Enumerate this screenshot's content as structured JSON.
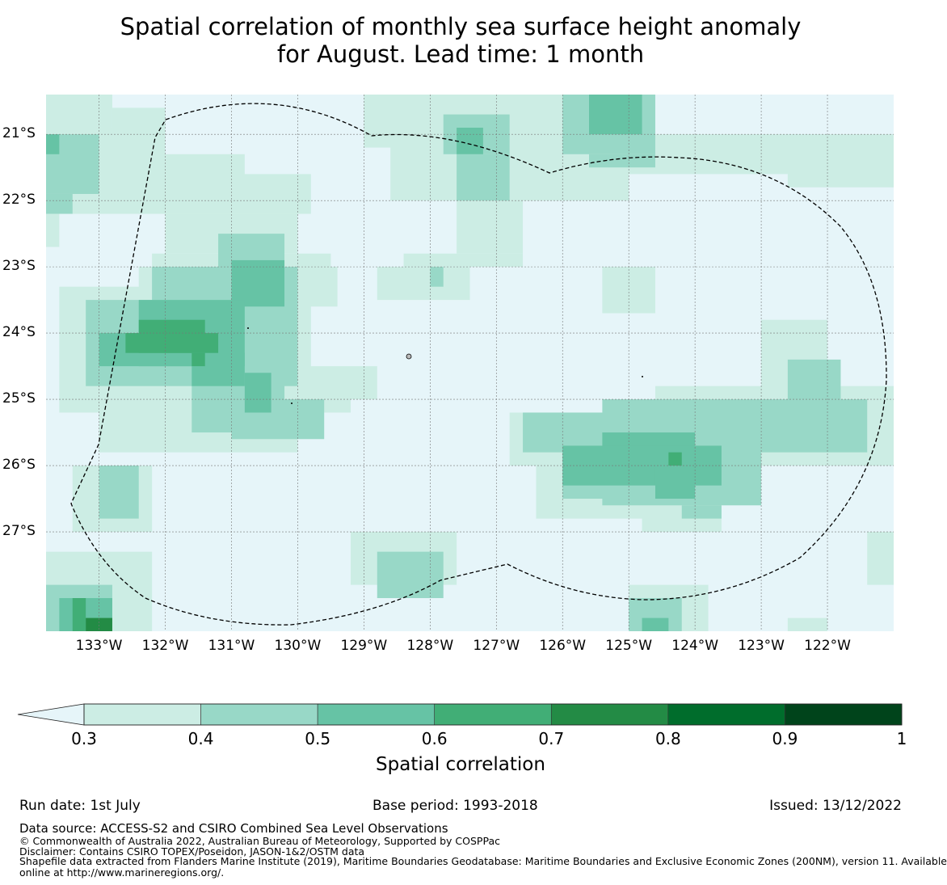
{
  "title_lines": [
    "Spatial correlation of monthly sea surface height anomaly",
    "for August. Lead time: 1 month"
  ],
  "chart_data": {
    "type": "heatmap",
    "title": "Spatial correlation of monthly sea surface height anomaly for August. Lead time: 1 month",
    "x_ticks": [
      "133°W",
      "132°W",
      "131°W",
      "130°W",
      "129°W",
      "128°W",
      "127°W",
      "126°W",
      "125°W",
      "124°W",
      "123°W",
      "122°W"
    ],
    "y_ticks": [
      "21°S",
      "22°S",
      "23°S",
      "24°S",
      "25°S",
      "26°S",
      "27°S"
    ],
    "lon_range": [
      -133.8,
      -121.0
    ],
    "lat_range": [
      -28.5,
      -20.4
    ],
    "grid": true,
    "cell_size_deg": 0.25,
    "levels": [
      0.3,
      0.4,
      0.5,
      0.6,
      0.7,
      0.8,
      0.9,
      1
    ],
    "level_colors": [
      "#ccede4",
      "#98d8c7",
      "#66c3a5",
      "#41ae76",
      "#238b45",
      "#006d2c",
      "#00441b"
    ],
    "below_min_color": "#e6f5f9",
    "colorbar_label": "Spatial correlation",
    "cells": [
      {
        "lon0": -133.8,
        "lat0": -20.4,
        "lon1": -132.8,
        "lat1": -20.9,
        "level": 0
      },
      {
        "lon0": -132.8,
        "lat0": -20.6,
        "lon1": -132.0,
        "lat1": -20.9,
        "level": 0
      },
      {
        "lon0": -133.8,
        "lat0": -20.9,
        "lon1": -132.0,
        "lat1": -22.2,
        "level": 0
      },
      {
        "lon0": -133.8,
        "lat0": -21.0,
        "lon1": -133.0,
        "lat1": -21.9,
        "level": 1
      },
      {
        "lon0": -133.8,
        "lat0": -21.9,
        "lon1": -133.4,
        "lat1": -22.2,
        "level": 1
      },
      {
        "lon0": -133.8,
        "lat0": -21.0,
        "lon1": -133.6,
        "lat1": -21.3,
        "level": 2
      },
      {
        "lon0": -133.8,
        "lat0": -22.2,
        "lon1": -133.6,
        "lat1": -22.7,
        "level": 0
      },
      {
        "lon0": -132.0,
        "lat0": -21.3,
        "lon1": -130.8,
        "lat1": -22.0,
        "level": 0
      },
      {
        "lon0": -132.0,
        "lat0": -21.6,
        "lon1": -129.8,
        "lat1": -22.2,
        "level": 0
      },
      {
        "lon0": -132.0,
        "lat0": -22.2,
        "lon1": -130.0,
        "lat1": -22.8,
        "level": 0
      },
      {
        "lon0": -132.2,
        "lat0": -22.8,
        "lon1": -129.5,
        "lat1": -23.3,
        "level": 0
      },
      {
        "lon0": -132.4,
        "lat0": -23.0,
        "lon1": -129.4,
        "lat1": -23.6,
        "level": 0
      },
      {
        "lon0": -133.6,
        "lat0": -23.3,
        "lon1": -129.8,
        "lat1": -25.2,
        "level": 0
      },
      {
        "lon0": -133.0,
        "lat0": -24.8,
        "lon1": -130.0,
        "lat1": -25.8,
        "level": 0
      },
      {
        "lon0": -130.0,
        "lat0": -24.5,
        "lon1": -128.8,
        "lat1": -25.0,
        "level": 0
      },
      {
        "lon0": -130.0,
        "lat0": -25.0,
        "lon1": -129.2,
        "lat1": -25.2,
        "level": 0
      },
      {
        "lon0": -131.2,
        "lat0": -22.5,
        "lon1": -130.2,
        "lat1": -23.5,
        "level": 1
      },
      {
        "lon0": -132.2,
        "lat0": -23.0,
        "lon1": -130.0,
        "lat1": -23.8,
        "level": 1
      },
      {
        "lon0": -133.2,
        "lat0": -23.5,
        "lon1": -130.0,
        "lat1": -24.8,
        "level": 1
      },
      {
        "lon0": -131.6,
        "lat0": -24.5,
        "lon1": -130.2,
        "lat1": -25.5,
        "level": 1
      },
      {
        "lon0": -131.0,
        "lat0": -25.0,
        "lon1": -129.6,
        "lat1": -25.6,
        "level": 1
      },
      {
        "lon0": -131.0,
        "lat0": -22.9,
        "lon1": -130.2,
        "lat1": -23.6,
        "level": 2
      },
      {
        "lon0": -132.4,
        "lat0": -23.5,
        "lon1": -130.8,
        "lat1": -24.5,
        "level": 2
      },
      {
        "lon0": -133.0,
        "lat0": -24.0,
        "lon1": -131.6,
        "lat1": -24.5,
        "level": 2
      },
      {
        "lon0": -131.6,
        "lat0": -24.3,
        "lon1": -130.8,
        "lat1": -24.8,
        "level": 2
      },
      {
        "lon0": -130.8,
        "lat0": -24.6,
        "lon1": -130.4,
        "lat1": -25.2,
        "level": 2
      },
      {
        "lon0": -132.4,
        "lat0": -23.8,
        "lon1": -131.4,
        "lat1": -24.3,
        "level": 3
      },
      {
        "lon0": -132.6,
        "lat0": -24.0,
        "lon1": -131.2,
        "lat1": -24.3,
        "level": 3
      },
      {
        "lon0": -131.6,
        "lat0": -24.3,
        "lon1": -131.4,
        "lat1": -24.5,
        "level": 3
      },
      {
        "lon0": -129.0,
        "lat0": -20.4,
        "lon1": -127.0,
        "lat1": -21.2,
        "level": 0
      },
      {
        "lon0": -128.6,
        "lat0": -20.7,
        "lon1": -126.4,
        "lat1": -22.0,
        "level": 0
      },
      {
        "lon0": -127.2,
        "lat0": -20.4,
        "lon1": -125.0,
        "lat1": -22.0,
        "level": 0
      },
      {
        "lon0": -126.0,
        "lat0": -21.0,
        "lon1": -122.0,
        "lat1": -21.6,
        "level": 0
      },
      {
        "lon0": -122.6,
        "lat0": -21.0,
        "lon1": -121.0,
        "lat1": -21.8,
        "level": 0
      },
      {
        "lon0": -127.6,
        "lat0": -22.0,
        "lon1": -126.6,
        "lat1": -22.8,
        "level": 0
      },
      {
        "lon0": -128.4,
        "lat0": -22.8,
        "lon1": -126.6,
        "lat1": -23.0,
        "level": 0
      },
      {
        "lon0": -128.8,
        "lat0": -23.0,
        "lon1": -127.4,
        "lat1": -23.5,
        "level": 0
      },
      {
        "lon0": -127.8,
        "lat0": -20.7,
        "lon1": -126.8,
        "lat1": -21.3,
        "level": 1
      },
      {
        "lon0": -127.6,
        "lat0": -21.3,
        "lon1": -126.8,
        "lat1": -22.0,
        "level": 1
      },
      {
        "lon0": -126.0,
        "lat0": -20.4,
        "lon1": -124.6,
        "lat1": -21.3,
        "level": 1
      },
      {
        "lon0": -125.6,
        "lat0": -21.3,
        "lon1": -124.6,
        "lat1": -21.5,
        "level": 1
      },
      {
        "lon0": -127.6,
        "lat0": -20.9,
        "lon1": -127.2,
        "lat1": -21.3,
        "level": 2
      },
      {
        "lon0": -125.6,
        "lat0": -20.4,
        "lon1": -124.8,
        "lat1": -21.0,
        "level": 2
      },
      {
        "lon0": -128.0,
        "lat0": -23.0,
        "lon1": -127.8,
        "lat1": -23.3,
        "level": 1
      },
      {
        "lon0": -125.4,
        "lat0": -23.0,
        "lon1": -124.6,
        "lat1": -23.7,
        "level": 0
      },
      {
        "lon0": -122.0,
        "lat0": -23.8,
        "lon1": -123.0,
        "lat1": -25.0,
        "level": 0
      },
      {
        "lon0": -124.6,
        "lat0": -24.8,
        "lon1": -121.0,
        "lat1": -26.0,
        "level": 0
      },
      {
        "lon0": -126.8,
        "lat0": -25.2,
        "lon1": -121.0,
        "lat1": -26.0,
        "level": 0
      },
      {
        "lon0": -126.4,
        "lat0": -26.0,
        "lon1": -124.0,
        "lat1": -26.8,
        "level": 0
      },
      {
        "lon0": -124.8,
        "lat0": -26.0,
        "lon1": -123.6,
        "lat1": -27.0,
        "level": 0
      },
      {
        "lon0": -126.6,
        "lat0": -25.2,
        "lon1": -124.0,
        "lat1": -25.8,
        "level": 1
      },
      {
        "lon0": -125.4,
        "lat0": -25.0,
        "lon1": -123.0,
        "lat1": -26.6,
        "level": 1
      },
      {
        "lon0": -126.0,
        "lat0": -25.8,
        "lon1": -124.8,
        "lat1": -26.5,
        "level": 1
      },
      {
        "lon0": -123.0,
        "lat0": -25.0,
        "lon1": -121.4,
        "lat1": -25.8,
        "level": 1
      },
      {
        "lon0": -122.6,
        "lat0": -24.4,
        "lon1": -121.8,
        "lat1": -25.0,
        "level": 1
      },
      {
        "lon0": -124.2,
        "lat0": -26.6,
        "lon1": -123.6,
        "lat1": -26.8,
        "level": 1
      },
      {
        "lon0": -125.4,
        "lat0": -25.5,
        "lon1": -124.0,
        "lat1": -26.0,
        "level": 2
      },
      {
        "lon0": -126.0,
        "lat0": -25.7,
        "lon1": -123.6,
        "lat1": -26.3,
        "level": 2
      },
      {
        "lon0": -124.6,
        "lat0": -26.0,
        "lon1": -124.0,
        "lat1": -26.5,
        "level": 2
      },
      {
        "lon0": -124.4,
        "lat0": -25.8,
        "lon1": -124.2,
        "lat1": -26.0,
        "level": 3
      },
      {
        "lon0": -133.4,
        "lat0": -26.0,
        "lon1": -132.2,
        "lat1": -27.0,
        "level": 0
      },
      {
        "lon0": -133.0,
        "lat0": -26.0,
        "lon1": -132.4,
        "lat1": -26.8,
        "level": 1
      },
      {
        "lon0": -133.8,
        "lat0": -27.3,
        "lon1": -132.2,
        "lat1": -28.5,
        "level": 0
      },
      {
        "lon0": -133.8,
        "lat0": -27.8,
        "lon1": -132.8,
        "lat1": -28.5,
        "level": 1
      },
      {
        "lon0": -133.6,
        "lat0": -28.0,
        "lon1": -132.8,
        "lat1": -28.5,
        "level": 2
      },
      {
        "lon0": -133.4,
        "lat0": -28.0,
        "lon1": -133.2,
        "lat1": -28.5,
        "level": 3
      },
      {
        "lon0": -133.2,
        "lat0": -28.3,
        "lon1": -132.8,
        "lat1": -28.5,
        "level": 4
      },
      {
        "lon0": -129.2,
        "lat0": -27.0,
        "lon1": -127.6,
        "lat1": -27.8,
        "level": 0
      },
      {
        "lon0": -128.8,
        "lat0": -27.3,
        "lon1": -127.8,
        "lat1": -28.0,
        "level": 1
      },
      {
        "lon0": -125.0,
        "lat0": -27.8,
        "lon1": -123.8,
        "lat1": -28.5,
        "level": 0
      },
      {
        "lon0": -125.0,
        "lat0": -28.0,
        "lon1": -124.2,
        "lat1": -28.5,
        "level": 1
      },
      {
        "lon0": -124.8,
        "lat0": -28.3,
        "lon1": -124.4,
        "lat1": -28.5,
        "level": 2
      },
      {
        "lon0": -122.6,
        "lat0": -28.3,
        "lon1": -122.0,
        "lat1": -28.5,
        "level": 0
      },
      {
        "lon0": -121.4,
        "lat0": -27.0,
        "lon1": -121.0,
        "lat1": -27.8,
        "level": 0
      }
    ]
  },
  "colorbar": {
    "label": "Spatial correlation",
    "ticks": [
      "0.3",
      "0.4",
      "0.5",
      "0.6",
      "0.7",
      "0.8",
      "0.9",
      "1"
    ]
  },
  "footer": {
    "run_date": "Run date: 1st July",
    "base_period": "Base period: 1993-2018",
    "issued": "Issued: 13/12/2022",
    "data_source": "Data source: ACCESS-S2 and CSIRO Combined Sea Level Observations",
    "copyright": "© Commonwealth of Australia 2022, Australian Bureau of Meteorology, Supported by COSPPac",
    "disclaimer": "Disclaimer: Contains CSIRO TOPEX/Poseidon, JASON-1&2/OSTM data",
    "shapefile_1": "Shapefile data extracted from Flanders Marine Institute (2019), Maritime Boundaries Geodatabase: Maritime Boundaries and Exclusive Economic Zones (200NM), version 11. Available",
    "shapefile_2": "online at http://www.marineregions.org/."
  }
}
